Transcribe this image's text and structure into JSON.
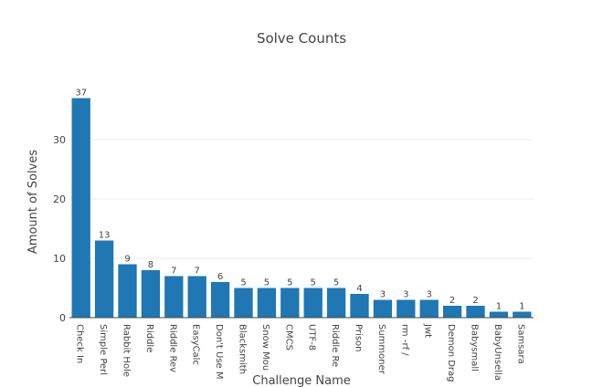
{
  "chart_data": {
    "type": "bar",
    "title": "Solve Counts",
    "xlabel": "Challenge Name",
    "ylabel": "Amount of Solves",
    "categories": [
      "Check In",
      "Simple Perl",
      "Rabbit Hole",
      "Riddle",
      "Riddle Rev",
      "EasyCalc",
      "Don't Use M",
      "Blacksmith",
      "Snow Mou",
      "CMCS",
      "UTF-8",
      "Riddle Re",
      "Prison",
      "Summoner",
      "rm -rf /",
      "Jwt",
      "Demon Drag",
      "Babysmall",
      "BabyUnsella",
      "Samsara"
    ],
    "values": [
      37,
      13,
      9,
      8,
      7,
      7,
      6,
      5,
      5,
      5,
      5,
      5,
      4,
      3,
      3,
      3,
      2,
      2,
      1,
      1
    ],
    "ylim": [
      0,
      40
    ],
    "yticks": [
      0,
      10,
      20,
      30
    ],
    "grid": true,
    "bar_color": "#1f77b4"
  }
}
